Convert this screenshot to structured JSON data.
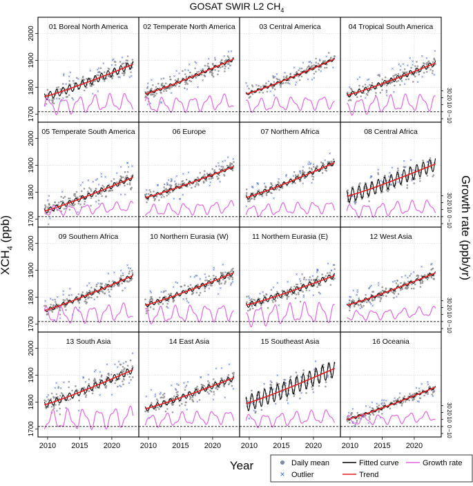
{
  "figure": {
    "title_prefix": "GOSAT SWIR L2 CH",
    "title_sub": "4",
    "ylabel_left_prefix": "XCH",
    "ylabel_left_sub": "4",
    "ylabel_left_suffix": " (ppb)",
    "ylabel_right": "Growth rate (ppb/yr)",
    "xlabel": "Year"
  },
  "legend": {
    "items": [
      {
        "label": "Daily mean",
        "symbol": "dot",
        "color": "#8c8c8c"
      },
      {
        "label": "Fitted curve",
        "symbol": "line",
        "color": "#000000"
      },
      {
        "label": "Growth rate",
        "symbol": "line",
        "color": "#e066e0"
      },
      {
        "label": "Outlier",
        "symbol": "cross",
        "color": "#3a5fcd"
      },
      {
        "label": "Trend",
        "symbol": "line",
        "color": "#e41a1c"
      }
    ]
  },
  "colors": {
    "daily_mean": "#8c8c8c",
    "outlier": "#3a5fcd",
    "fitted_curve": "#000000",
    "trend": "#e41a1c",
    "growth_rate": "#e066e0"
  },
  "chart_data": {
    "type": "scatter",
    "layout": "4x4 panel grid",
    "x": {
      "label": "Year",
      "range": [
        2008.5,
        2024.2
      ],
      "ticks": [
        2010,
        2015,
        2020
      ]
    },
    "y_left": {
      "label": "XCH4 (ppb)",
      "range": [
        1670,
        2060
      ],
      "ticks": [
        1700,
        1800,
        1900,
        2000
      ]
    },
    "y_right": {
      "label": "Growth rate (ppb/yr)",
      "range": [
        -15,
        135
      ],
      "ticks": [
        -10,
        0,
        10,
        20,
        30
      ],
      "tick_labels": [
        "−10",
        "0",
        "10",
        "20",
        "30"
      ]
    },
    "panels": [
      {
        "title": "01 Boreal North America",
        "trend_start": 1765,
        "trend_end": 1885,
        "seasonal_amp": 14,
        "scatter_sd": 14,
        "growth_amp": 10
      },
      {
        "title": "02 Temperate North America",
        "trend_start": 1775,
        "trend_end": 1905,
        "seasonal_amp": 6,
        "scatter_sd": 13,
        "growth_amp": 9
      },
      {
        "title": "03 Central America",
        "trend_start": 1775,
        "trend_end": 1905,
        "seasonal_amp": 5,
        "scatter_sd": 10,
        "growth_amp": 8
      },
      {
        "title": "04 Tropical South America",
        "trend_start": 1770,
        "trend_end": 1890,
        "seasonal_amp": 9,
        "scatter_sd": 14,
        "growth_amp": 10
      },
      {
        "title": "05 Temperate South America",
        "trend_start": 1730,
        "trend_end": 1855,
        "seasonal_amp": 9,
        "scatter_sd": 15,
        "growth_amp": 6
      },
      {
        "title": "06 Europe",
        "trend_start": 1780,
        "trend_end": 1895,
        "seasonal_amp": 6,
        "scatter_sd": 11,
        "growth_amp": 7
      },
      {
        "title": "07 Northern Africa",
        "trend_start": 1780,
        "trend_end": 1910,
        "seasonal_amp": 8,
        "scatter_sd": 10,
        "growth_amp": 7
      },
      {
        "title": "08 Central Africa",
        "trend_start": 1785,
        "trend_end": 1905,
        "seasonal_amp": 25,
        "scatter_sd": 10,
        "growth_amp": 8
      },
      {
        "title": "09 Southern Africa",
        "trend_start": 1750,
        "trend_end": 1880,
        "seasonal_amp": 7,
        "scatter_sd": 12,
        "growth_amp": 10
      },
      {
        "title": "10 Northern Eurasia (W)",
        "trend_start": 1770,
        "trend_end": 1890,
        "seasonal_amp": 8,
        "scatter_sd": 13,
        "growth_amp": 10
      },
      {
        "title": "11 Northern Eurasia (E)",
        "trend_start": 1770,
        "trend_end": 1880,
        "seasonal_amp": 10,
        "scatter_sd": 13,
        "growth_amp": 12
      },
      {
        "title": "12 West Asia",
        "trend_start": 1770,
        "trend_end": 1890,
        "seasonal_amp": 6,
        "scatter_sd": 12,
        "growth_amp": 6
      },
      {
        "title": "13 South Asia",
        "trend_start": 1790,
        "trend_end": 1920,
        "seasonal_amp": 12,
        "scatter_sd": 16,
        "growth_amp": 12
      },
      {
        "title": "14 East Asia",
        "trend_start": 1775,
        "trend_end": 1890,
        "seasonal_amp": 10,
        "scatter_sd": 15,
        "growth_amp": 8
      },
      {
        "title": "15 Southeast Asia",
        "trend_start": 1795,
        "trend_end": 1925,
        "seasonal_amp": 30,
        "scatter_sd": 10,
        "growth_amp": 8
      },
      {
        "title": "16 Oceania",
        "trend_start": 1735,
        "trend_end": 1855,
        "seasonal_amp": 5,
        "scatter_sd": 9,
        "growth_amp": 6
      }
    ]
  }
}
